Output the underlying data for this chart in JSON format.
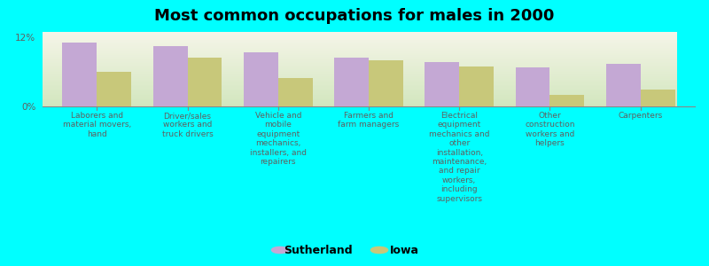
{
  "title": "Most common occupations for males in 2000",
  "background_color": "#00FFFF",
  "bar_color_sutherland": "#C4A8D4",
  "bar_color_iowa": "#C8C87A",
  "plot_bg_top": "#F5F5E8",
  "plot_bg_bottom": "#E0EDD0",
  "categories": [
    "Laborers and\nmaterial movers,\nhand",
    "Driver/sales\nworkers and\ntruck drivers",
    "Vehicle and\nmobile\nequipment\nmechanics,\ninstallers, and\nrepairers",
    "Farmers and\nfarm managers",
    "Electrical\nequipment\nmechanics and\nother\ninstallation,\nmaintenance,\nand repair\nworkers,\nincluding\nsupervisors",
    "Other\nconstruction\nworkers and\nhelpers",
    "Carpenters"
  ],
  "sutherland_values": [
    11.2,
    10.5,
    9.5,
    8.5,
    7.8,
    6.8,
    7.5
  ],
  "iowa_values": [
    6.0,
    8.5,
    5.0,
    8.0,
    7.0,
    2.0,
    3.0
  ],
  "ylim": [
    0,
    13
  ],
  "yticks": [
    0,
    12
  ],
  "ytick_labels": [
    "0%",
    "12%"
  ],
  "legend_sutherland": "Sutherland",
  "legend_iowa": "Iowa"
}
